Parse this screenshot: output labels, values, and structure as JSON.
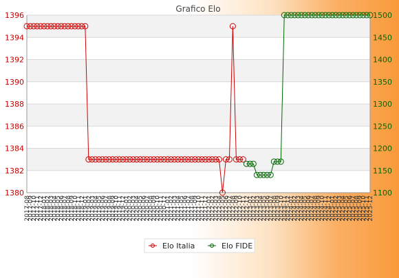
{
  "chart_data": {
    "type": "line",
    "title": "Grafico Elo",
    "x_range": [
      "2017-08",
      "2025-12"
    ],
    "y_left": {
      "min": 1380,
      "max": 1396,
      "ticks": [
        1380,
        1382,
        1384,
        1386,
        1388,
        1390,
        1392,
        1394,
        1396
      ],
      "color": "#cc0000"
    },
    "y_right": {
      "min": 1100,
      "max": 1500,
      "ticks": [
        1100,
        1150,
        1200,
        1250,
        1300,
        1350,
        1400,
        1450,
        1500
      ],
      "color": "#006600"
    },
    "x_labels": [
      "2017-08",
      "2017-09",
      "2017-10",
      "2017-11",
      "2017-12",
      "2018-01",
      "2018-02",
      "2018-03",
      "2018-04",
      "2018-05",
      "2018-06",
      "2018-07",
      "2018-08",
      "2018-09",
      "2018-10",
      "2018-11",
      "2018-12",
      "2019-01",
      "2019-02",
      "2019-03",
      "2019-04",
      "2019-05",
      "2019-06",
      "2019-07",
      "2019-08",
      "2019-09",
      "2019-10",
      "2019-11",
      "2019-12",
      "2020-01",
      "2020-02",
      "2020-03",
      "2020-04",
      "2020-05",
      "2020-06",
      "2020-07",
      "2020-08",
      "2020-09",
      "2020-10",
      "2020-11",
      "2020-12",
      "2021-01",
      "2021-02",
      "2021-03",
      "2021-04",
      "2021-05",
      "2021-06",
      "2021-07",
      "2021-08",
      "2021-09",
      "2021-10",
      "2021-11",
      "2021-12",
      "2022-01",
      "2022-02",
      "2022-03",
      "2022-04",
      "2022-05",
      "2022-06",
      "2022-07",
      "2022-08",
      "2022-09",
      "2022-10",
      "2022-11",
      "2022-12",
      "2023-01",
      "2023-02",
      "2023-03",
      "2023-04",
      "2023-05",
      "2023-06",
      "2023-07",
      "2023-08",
      "2023-09",
      "2023-10",
      "2023-11",
      "2023-12",
      "2024-01",
      "2024-02",
      "2024-03",
      "2024-04",
      "2024-05",
      "2024-06",
      "2024-07",
      "2024-08",
      "2024-09",
      "2024-10",
      "2024-11",
      "2024-12",
      "2025-01",
      "2025-02",
      "2025-03",
      "2025-04",
      "2025-05",
      "2025-06",
      "2025-07",
      "2025-08",
      "2025-09",
      "2025-10",
      "2025-11",
      "2025-12"
    ],
    "series": [
      {
        "name": "Elo Italia",
        "axis": "left",
        "color": "#cc0000",
        "segments": [
          {
            "from": 0,
            "to": 17,
            "value": 1395
          },
          {
            "from": 18,
            "to": 56,
            "value": 1383
          },
          {
            "point": 57,
            "value": 1380
          },
          {
            "from": 58,
            "to": 59,
            "value": 1383
          },
          {
            "point": 60,
            "value": 1395
          },
          {
            "from": 61,
            "to": 63,
            "value": 1383
          }
        ]
      },
      {
        "name": "Elo FIDE",
        "axis": "right",
        "color": "#006600",
        "segments": [
          {
            "from": 64,
            "to": 66,
            "value": 1165
          },
          {
            "from": 67,
            "to": 71,
            "value": 1140
          },
          {
            "from": 72,
            "to": 74,
            "value": 1170
          },
          {
            "from": 75,
            "to": 100,
            "value": 1500
          }
        ]
      }
    ],
    "legend": {
      "placement": "bottom"
    }
  }
}
